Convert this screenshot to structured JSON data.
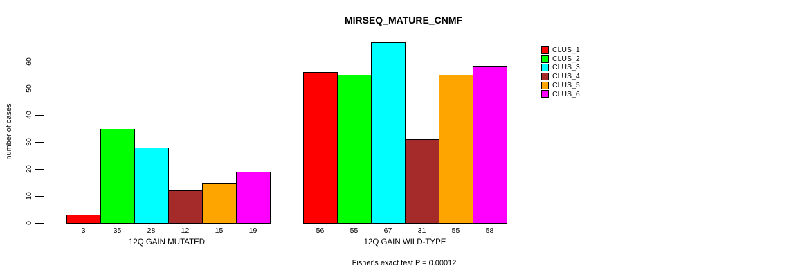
{
  "title": "MIRSEQ_MATURE_CNMF",
  "y_axis_label": "number of cases",
  "footer_note": "Fisher's exact test P = 0.00012",
  "legend": {
    "position": "right",
    "items": [
      {
        "label": "CLUS_1",
        "color": "#FF0000"
      },
      {
        "label": "CLUS_2",
        "color": "#00FF00"
      },
      {
        "label": "CLUS_3",
        "color": "#00FFFF"
      },
      {
        "label": "CLUS_4",
        "color": "#A52A2A"
      },
      {
        "label": "CLUS_5",
        "color": "#FFA500"
      },
      {
        "label": "CLUS_6",
        "color": "#FF00FF"
      }
    ]
  },
  "chart_data": {
    "type": "bar",
    "title": "MIRSEQ_MATURE_CNMF",
    "xlabel": "",
    "ylabel": "number of cases",
    "ylim": [
      0,
      60
    ],
    "yticks": [
      0,
      10,
      20,
      30,
      40,
      50,
      60
    ],
    "grid": false,
    "legend_position": "right",
    "bar_value_labels": true,
    "annotation": "Fisher's exact test P = 0.00012",
    "categories": [
      "12Q GAIN MUTATED",
      "12Q GAIN WILD-TYPE"
    ],
    "series": [
      {
        "name": "CLUS_1",
        "color": "#FF0000",
        "values": [
          3,
          56
        ]
      },
      {
        "name": "CLUS_2",
        "color": "#00FF00",
        "values": [
          35,
          55
        ]
      },
      {
        "name": "CLUS_3",
        "color": "#00FFFF",
        "values": [
          28,
          67
        ]
      },
      {
        "name": "CLUS_4",
        "color": "#A52A2A",
        "values": [
          12,
          31
        ]
      },
      {
        "name": "CLUS_5",
        "color": "#FFA500",
        "values": [
          15,
          55
        ]
      },
      {
        "name": "CLUS_6",
        "color": "#FF00FF",
        "values": [
          19,
          58
        ]
      }
    ]
  }
}
